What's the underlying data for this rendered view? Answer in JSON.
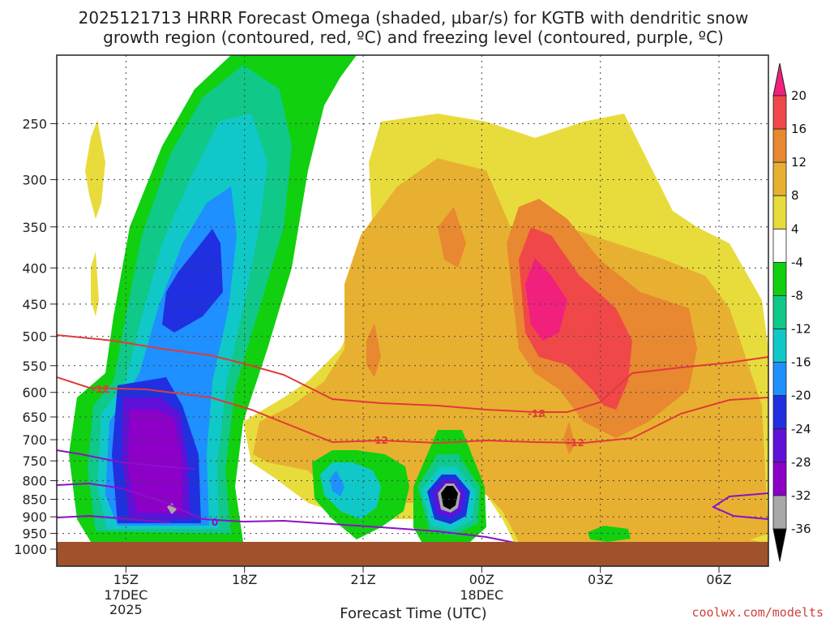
{
  "chart_data": {
    "type": "heatmap",
    "title_lines": [
      "2025121713 HRRR Forecast Omega (shaded, µbar/s) for KGTB with dendritic snow",
      "growth region (contoured, red, ºC) and freezing level (contoured, purple, ºC)"
    ],
    "xlabel": "Forecast Time (UTC)",
    "x_ticks": [
      {
        "label": "15Z",
        "sub": [
          "17DEC",
          "2025"
        ],
        "hour": 2
      },
      {
        "label": "18Z",
        "sub": [],
        "hour": 5
      },
      {
        "label": "21Z",
        "sub": [],
        "hour": 8
      },
      {
        "label": "00Z",
        "sub": [
          "18DEC"
        ],
        "hour": 11
      },
      {
        "label": "03Z",
        "sub": [],
        "hour": 14
      },
      {
        "label": "06Z",
        "sub": [],
        "hour": 17
      }
    ],
    "y_ticks": [
      250,
      300,
      350,
      400,
      450,
      500,
      550,
      600,
      650,
      700,
      750,
      800,
      850,
      900,
      950,
      1000
    ],
    "colorbar": {
      "levels": [
        "-36",
        "-32",
        "-28",
        "-24",
        "-20",
        "-16",
        "-12",
        "-8",
        "-4",
        "4",
        "8",
        "12",
        "16",
        "20"
      ],
      "colors": [
        "#000000",
        "#a8a8a8",
        "#8c00c8",
        "#6010d8",
        "#2030e0",
        "#1e90ff",
        "#10c8c8",
        "#10c888",
        "#10d010",
        "#ffffff",
        "#e8dc3c",
        "#e8b030",
        "#e88830",
        "#f04848",
        "#f0207c"
      ]
    },
    "contour_labels": [
      {
        "text": "-12",
        "color": "#e03a3a"
      },
      {
        "text": "-12",
        "color": "#e03a3a"
      },
      {
        "text": "-18",
        "color": "#e03a3a"
      },
      {
        "text": "-12",
        "color": "#e03a3a"
      },
      {
        "text": "0",
        "color": "#8c10c8"
      }
    ],
    "ground_color": "#a0522d",
    "grid": true
  },
  "credit": "coolwx.com/modelts"
}
